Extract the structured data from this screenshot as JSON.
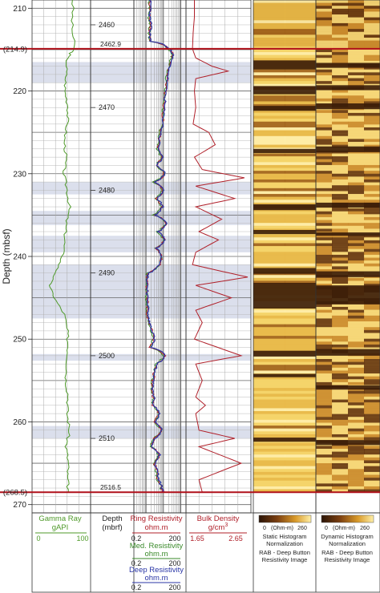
{
  "chart_data": {
    "type": "line",
    "title": "",
    "ylabel": "Depth (mbsf)",
    "ylim": [
      209,
      271
    ],
    "y_ticks": [
      210,
      220,
      230,
      240,
      250,
      260,
      270
    ],
    "y_tick_labels": [
      "210",
      "220",
      "230",
      "240",
      "250",
      "260",
      "270"
    ],
    "interval_markers": [
      {
        "label": "(214.9)",
        "depth_mbsf": 214.9,
        "depth_mbrf": "2462.9"
      },
      {
        "label": "(268.5)",
        "depth_mbsf": 268.5,
        "depth_mbrf": "2516.5"
      }
    ],
    "mbrf_ticks": [
      {
        "label": "2460",
        "mbsf": 212
      },
      {
        "label": "2470",
        "mbsf": 222
      },
      {
        "label": "2480",
        "mbsf": 232
      },
      {
        "label": "2490",
        "mbsf": 242
      },
      {
        "label": "2500",
        "mbsf": 252
      },
      {
        "label": "2510",
        "mbsf": 262
      }
    ],
    "shaded_intervals": [
      [
        216.5,
        219
      ],
      [
        231,
        232.5
      ],
      [
        234.5,
        236.2
      ],
      [
        237.5,
        239.5
      ],
      [
        241,
        247.5
      ],
      [
        251.8,
        252.6
      ],
      [
        260.5,
        262
      ]
    ],
    "tracks": [
      {
        "name": "Gamma Ray",
        "unit": "gAPI",
        "color": "#4f9a2a",
        "scale": "linear",
        "range": [
          0,
          100
        ],
        "range_labels": [
          "0",
          "100"
        ],
        "depth": [
          209,
          212,
          214.9,
          216,
          218,
          220,
          222,
          224,
          226,
          228,
          230,
          232,
          234,
          236,
          238,
          240,
          242,
          243.5,
          245,
          247,
          249,
          251,
          253,
          255,
          257,
          259,
          261,
          263,
          265,
          266.5,
          268.5
        ],
        "values": [
          70,
          68,
          72,
          60,
          58,
          56,
          62,
          60,
          55,
          58,
          54,
          60,
          64,
          58,
          56,
          52,
          40,
          30,
          38,
          55,
          60,
          62,
          60,
          58,
          62,
          60,
          64,
          58,
          62,
          60,
          62
        ]
      },
      {
        "name": "Depth",
        "unit": "(mbrf)",
        "color": "#333333"
      },
      {
        "name": "Ring Resistivity",
        "unit": "ohm.m",
        "color": "#b0202a",
        "scale": "log",
        "range": [
          0.2,
          200
        ],
        "range_labels": [
          "0.2",
          "200"
        ],
        "depth": [
          209,
          210,
          211,
          212,
          213,
          214,
          214.9,
          215.5,
          216.5,
          218,
          219.5,
          221,
          222.5,
          224,
          225.5,
          227,
          228,
          229,
          230,
          231,
          232,
          233,
          234,
          235,
          236,
          237,
          238,
          239,
          240,
          241,
          242,
          243,
          244,
          245,
          246,
          247,
          248,
          249,
          250,
          251,
          252,
          253,
          254,
          255,
          256,
          257,
          258,
          259,
          260,
          261,
          262,
          263,
          264,
          265,
          266,
          267,
          268,
          268.5
        ],
        "values": [
          1.6,
          1.8,
          1.5,
          1.9,
          1.6,
          1.7,
          20,
          35,
          25,
          18,
          14,
          12,
          10,
          9,
          6,
          5,
          8,
          4,
          12,
          3,
          10,
          4,
          9,
          3,
          15,
          5,
          12,
          4,
          8,
          6,
          1.3,
          1.1,
          1.2,
          1.1,
          1.3,
          1.2,
          1.5,
          2.2,
          3,
          1.8,
          12,
          4,
          3,
          2.5,
          2.2,
          2.8,
          2.5,
          6,
          3,
          8,
          3,
          2,
          6,
          3,
          4.5,
          5,
          8,
          10
        ]
      },
      {
        "name": "Med. Resistivity",
        "unit": "ohm.m",
        "color": "#3a8a2a",
        "scale": "log",
        "range": [
          0.2,
          200
        ],
        "range_labels": [
          "0.2",
          "200"
        ]
      },
      {
        "name": "Deep Resistivity",
        "unit": "ohm.m",
        "color": "#2a36a6",
        "scale": "log",
        "range": [
          0.2,
          200
        ],
        "range_labels": [
          "0.2",
          "200"
        ]
      },
      {
        "name": "Bulk Density",
        "unit": "g/cm3",
        "color": "#b0202a",
        "scale": "linear",
        "range": [
          1.65,
          2.65
        ],
        "range_labels": [
          "1.65",
          "2.65"
        ],
        "depth": [
          209,
          211,
          213,
          214.9,
          216,
          217,
          217.6,
          218.5,
          220,
          222,
          224,
          225,
          226.5,
          228,
          229.5,
          230.5,
          231.5,
          233,
          234,
          235.5,
          237,
          238,
          239.5,
          241,
          242.5,
          243.5,
          245,
          246.5,
          248,
          250,
          252,
          253,
          255,
          257,
          258,
          259,
          261,
          262,
          263,
          265,
          267,
          268.5
        ],
        "values": [
          1.78,
          1.78,
          1.76,
          1.75,
          1.8,
          2.05,
          2.3,
          1.8,
          1.78,
          1.8,
          1.76,
          2.0,
          2.1,
          1.78,
          1.9,
          2.55,
          1.8,
          2.4,
          1.8,
          2.2,
          1.85,
          2.15,
          1.8,
          1.75,
          2.6,
          1.8,
          2.35,
          1.8,
          1.9,
          1.78,
          2.5,
          1.8,
          1.9,
          1.8,
          1.95,
          1.8,
          1.85,
          2.4,
          1.85,
          2.5,
          1.85,
          1.9
        ]
      }
    ],
    "images": [
      {
        "name": "Static Histogram Normalization",
        "subtitle": "RAB - Deep Button Resistivity Image",
        "scale_unit": "(Ohm-m)",
        "scale_min": "0",
        "scale_max": "260",
        "dark_bands": [
          [
            216.3,
            217.4
          ],
          [
            219.4,
            220.4
          ],
          [
            221.8,
            222.4
          ],
          [
            227,
            227.5
          ],
          [
            233.7,
            234.4
          ],
          [
            236.8,
            237.3
          ],
          [
            241.4,
            242.1
          ],
          [
            243.2,
            246.3
          ],
          [
            251.4,
            252.1
          ],
          [
            254.2,
            254.6
          ],
          [
            261.9,
            262.4
          ]
        ]
      },
      {
        "name": "Dynamic Histogram Normalization",
        "subtitle": "RAB - Deep Button Resistivity Image",
        "scale_unit": "(Ohm-m)",
        "scale_min": "0",
        "scale_max": "260",
        "dark_bands": [
          [
            216.6,
            217.2
          ],
          [
            219.3,
            219.9
          ],
          [
            221.5,
            222.2
          ],
          [
            226.7,
            227.4
          ],
          [
            233.5,
            234.1
          ],
          [
            237.1,
            237.5
          ],
          [
            241.8,
            242.5
          ],
          [
            243.5,
            245.8
          ],
          [
            251.2,
            252
          ],
          [
            255.6,
            256.1
          ],
          [
            262.2,
            262.8
          ]
        ]
      }
    ]
  },
  "labels": {
    "y_axis": "Depth (mbsf)",
    "depth_header": "Depth",
    "depth_unit": "(mbrf)",
    "gamma_name": "Gamma Ray",
    "gamma_unit": "gAPI",
    "gamma_min": "0",
    "gamma_max": "100",
    "ring_name": "Ring Resistivity",
    "ring_unit": "ohm.m",
    "ring_min": "0.2",
    "ring_max": "200",
    "med_name": "Med. Resistivity",
    "med_unit": "ohm.m",
    "med_min": "0.2",
    "med_max": "200",
    "deep_name": "Deep Resistivity",
    "deep_unit": "ohm.m",
    "deep_min": "0.2",
    "deep_max": "200",
    "density_name": "Bulk Density",
    "density_unit": "g/cm",
    "density_unit_sup": "3",
    "density_min": "1.65",
    "density_max": "2.65",
    "static_scale_min": "0",
    "static_scale_unit": "(Ohm-m)",
    "static_scale_max": "260",
    "static_title_1": "Static Histogram",
    "static_title_2": "Normalization",
    "static_sub_1": "RAB - Deep Button",
    "static_sub_2": "Resistivity Image",
    "dynamic_scale_min": "0",
    "dynamic_scale_unit": "(Ohm-m)",
    "dynamic_scale_max": "260",
    "dynamic_title_1": "Dynamic Histogram",
    "dynamic_title_2": "Normalization",
    "dynamic_sub_1": "RAB - Deep Button",
    "dynamic_sub_2": "Resistivity Image"
  },
  "colors": {
    "gamma": "#4f9a2a",
    "ring": "#b0202a",
    "med": "#3a8a2a",
    "deep": "#2a36a6",
    "density": "#b0202a",
    "marker": "#b0101a",
    "shade": "#cfd4e6",
    "image_light": "#f3d36a",
    "image_mid": "#c98c20",
    "image_dark": "#3a1c08"
  }
}
